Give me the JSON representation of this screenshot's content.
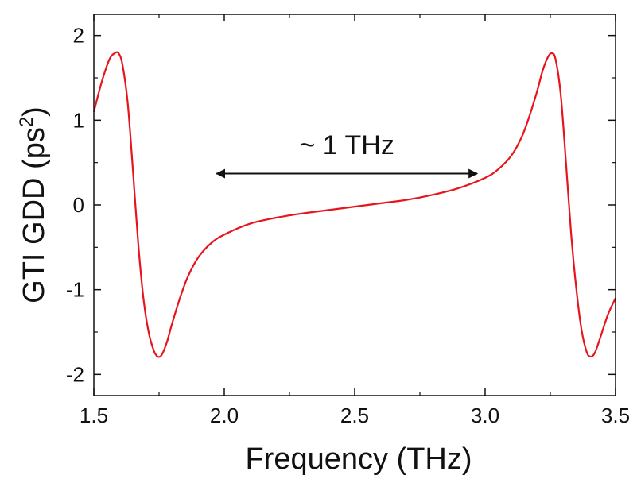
{
  "chart_data": {
    "type": "line",
    "xlabel": "Frequency (THz)",
    "ylabel_main": "GTI GDD (ps",
    "ylabel_sup": "2",
    "ylabel_close": ")",
    "xlim": [
      1.5,
      3.5
    ],
    "ylim": [
      -2.25,
      2.25
    ],
    "xticks": [
      1.5,
      2.0,
      2.5,
      3.0,
      3.5
    ],
    "xtick_labels": [
      "1.5",
      "2.0",
      "2.5",
      "3.0",
      "3.5"
    ],
    "yticks": [
      -2,
      -1,
      0,
      1,
      2
    ],
    "ytick_labels": [
      "-2",
      "-1",
      "0",
      "1",
      "2"
    ],
    "grid": false,
    "series": [
      {
        "color": "#e8141c",
        "x": [
          1.5,
          1.53,
          1.56,
          1.58,
          1.595,
          1.61,
          1.63,
          1.65,
          1.67,
          1.69,
          1.71,
          1.73,
          1.745,
          1.76,
          1.78,
          1.8,
          1.83,
          1.86,
          1.9,
          1.95,
          2.0,
          2.1,
          2.2,
          2.3,
          2.4,
          2.5,
          2.6,
          2.7,
          2.8,
          2.9,
          3.0,
          3.05,
          3.1,
          3.14,
          3.17,
          3.2,
          3.22,
          3.24,
          3.255,
          3.27,
          3.29,
          3.31,
          3.33,
          3.35,
          3.37,
          3.39,
          3.405,
          3.42,
          3.44,
          3.47,
          3.5
        ],
        "y": [
          1.1,
          1.45,
          1.72,
          1.79,
          1.79,
          1.65,
          1.2,
          0.4,
          -0.45,
          -1.1,
          -1.5,
          -1.72,
          -1.79,
          -1.77,
          -1.62,
          -1.4,
          -1.1,
          -0.85,
          -0.62,
          -0.45,
          -0.35,
          -0.22,
          -0.15,
          -0.1,
          -0.06,
          -0.02,
          0.02,
          0.06,
          0.12,
          0.2,
          0.32,
          0.42,
          0.58,
          0.8,
          1.05,
          1.35,
          1.58,
          1.74,
          1.79,
          1.72,
          1.3,
          0.5,
          -0.35,
          -1.0,
          -1.48,
          -1.74,
          -1.79,
          -1.75,
          -1.58,
          -1.3,
          -1.1
        ]
      }
    ],
    "annotation": {
      "text": "~ 1 THz",
      "arrow_from": 1.97,
      "arrow_to": 2.97,
      "arrow_y": 0.37,
      "text_x": 2.47,
      "text_y": 0.6
    }
  }
}
